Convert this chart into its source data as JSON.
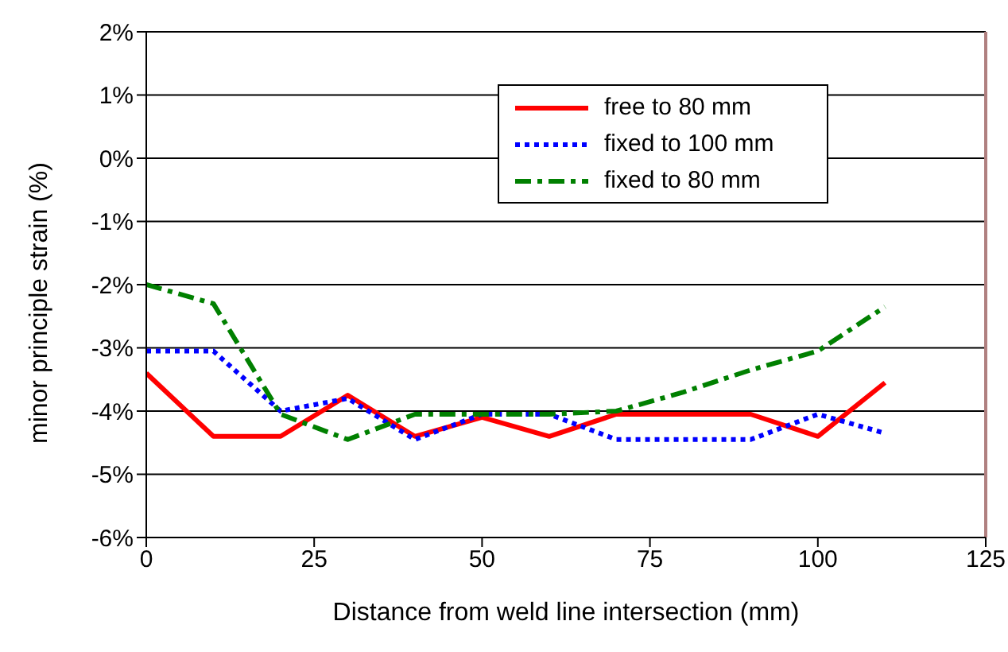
{
  "chart_data": {
    "type": "line",
    "xlabel": "Distance from weld line intersection (mm)",
    "ylabel": "minor principle strain (%)",
    "x": [
      0,
      10,
      20,
      30,
      40,
      50,
      60,
      70,
      80,
      90,
      100,
      110
    ],
    "series": [
      {
        "name": "free to 80 mm",
        "color": "#ff0000",
        "line_style": "solid",
        "values": [
          -3.4,
          -4.4,
          -4.4,
          -3.75,
          -4.4,
          -4.1,
          -4.4,
          -4.05,
          -4.05,
          -4.05,
          -4.4,
          -3.55
        ]
      },
      {
        "name": "fixed to 100 mm",
        "color": "#0000ff",
        "line_style": "dotted",
        "values": [
          -3.05,
          -3.05,
          -4.0,
          -3.8,
          -4.45,
          -4.05,
          -4.05,
          -4.45,
          -4.45,
          -4.45,
          -4.05,
          -4.35
        ]
      },
      {
        "name": "fixed to 80 mm",
        "color": "#008000",
        "line_style": "dashed",
        "values": [
          -2.0,
          -2.3,
          -4.05,
          -4.45,
          -4.05,
          -4.05,
          -4.05,
          -4.0,
          -3.7,
          -3.35,
          -3.05,
          -2.35
        ]
      }
    ],
    "xlim": [
      0,
      125
    ],
    "xticks": [
      0,
      25,
      50,
      75,
      100,
      125
    ],
    "ylim": [
      -6,
      2
    ],
    "yticks": [
      {
        "value": -6,
        "label": "-6%"
      },
      {
        "value": -5,
        "label": "-5%"
      },
      {
        "value": -4,
        "label": "-4%"
      },
      {
        "value": -3,
        "label": "-3%"
      },
      {
        "value": -2,
        "label": "-2%"
      },
      {
        "value": -1,
        "label": "-1%"
      },
      {
        "value": 0,
        "label": "0%"
      },
      {
        "value": 1,
        "label": "1%"
      },
      {
        "value": 2,
        "label": "2%"
      }
    ],
    "grid": "y",
    "legend": "top right",
    "marker": "none"
  }
}
